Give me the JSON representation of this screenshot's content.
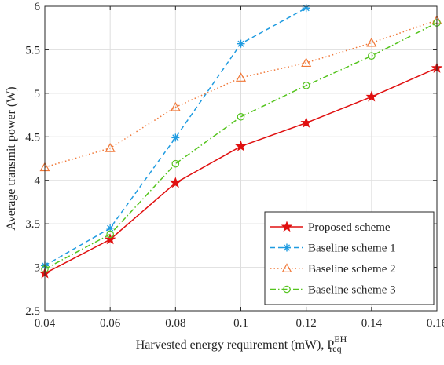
{
  "chart_data": {
    "type": "line",
    "title": "",
    "xlabel": "Harvested energy requirement (mW), P",
    "xlabel_sup": "EH",
    "xlabel_sub": "req",
    "ylabel": "Average transmit power (W)",
    "xlim": [
      0.04,
      0.16
    ],
    "ylim": [
      2.5,
      6
    ],
    "xticks": [
      "0.04",
      "0.06",
      "0.08",
      "0.1",
      "0.12",
      "0.14",
      "0.16"
    ],
    "xtick_values": [
      0.04,
      0.06,
      0.08,
      0.1,
      0.12,
      0.14,
      0.16
    ],
    "yticks": [
      "2.5",
      "3",
      "3.5",
      "4",
      "4.5",
      "5",
      "5.5",
      "6"
    ],
    "ytick_values": [
      2.5,
      3,
      3.5,
      4,
      4.5,
      5,
      5.5,
      6
    ],
    "grid": true,
    "legend_position": "bottom-right",
    "series": [
      {
        "name": "Proposed scheme",
        "color": "#e01010",
        "line_style": "solid",
        "marker": "star",
        "x": [
          0.04,
          0.06,
          0.08,
          0.1,
          0.12,
          0.14,
          0.16
        ],
        "values": [
          2.93,
          3.32,
          3.97,
          4.39,
          4.66,
          4.96,
          5.29
        ]
      },
      {
        "name": "Baseline scheme 1",
        "color": "#1f9be0",
        "line_style": "dashed",
        "marker": "asterisk",
        "x": [
          0.04,
          0.06,
          0.08,
          0.1,
          0.12
        ],
        "values": [
          3.02,
          3.45,
          4.49,
          5.57,
          5.98
        ]
      },
      {
        "name": "Baseline scheme 2",
        "color": "#f07838",
        "line_style": "dotted",
        "marker": "triangle",
        "x": [
          0.04,
          0.06,
          0.08,
          0.1,
          0.12,
          0.14,
          0.16
        ],
        "values": [
          4.15,
          4.37,
          4.84,
          5.18,
          5.35,
          5.58,
          5.84
        ]
      },
      {
        "name": "Baseline scheme 3",
        "color": "#55c41e",
        "line_style": "dashdot",
        "marker": "circle",
        "x": [
          0.04,
          0.06,
          0.08,
          0.1,
          0.12,
          0.14,
          0.16
        ],
        "values": [
          2.98,
          3.38,
          4.19,
          4.73,
          5.09,
          5.43,
          5.81
        ]
      }
    ]
  }
}
